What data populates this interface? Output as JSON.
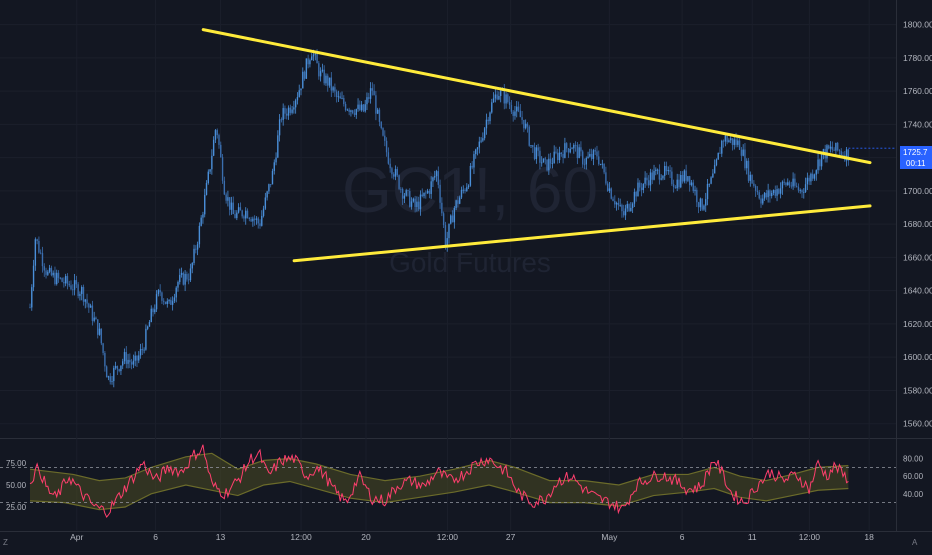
{
  "watermark": {
    "symbol": "GC1!, 60",
    "name": "Gold Futures"
  },
  "price": {
    "last": "1725.7",
    "countdown": "00:11",
    "accent": "#2962ff"
  },
  "colors": {
    "background": "#131722",
    "candle_up": "#4a8fd9",
    "candle_down": "#3b6fb0",
    "trendline": "#ffeb3b",
    "oscillator": "#ff3f6e",
    "band": "#6b6b2a",
    "band_fill": "#4a4a22",
    "axis_text": "#b2b5be"
  },
  "chart_data": [
    {
      "type": "candlestick",
      "title": "",
      "symbol": "GC1!, 60",
      "name": "Gold Futures",
      "x_ticks": [
        "Apr",
        "6",
        "13",
        "12:00",
        "20",
        "12:00",
        "27",
        "May",
        "6",
        "11",
        "12:00",
        "18"
      ],
      "y_ticks": [
        1800,
        1780,
        1760,
        1740,
        1720,
        1700,
        1680,
        1660,
        1640,
        1620,
        1600,
        1580,
        1560
      ],
      "ylim": [
        1552,
        1810
      ],
      "x_range": [
        0,
        100
      ],
      "price_path": [
        [
          0,
          1630
        ],
        [
          0.6,
          1672
        ],
        [
          2,
          1650
        ],
        [
          4,
          1645
        ],
        [
          6,
          1640
        ],
        [
          8,
          1615
        ],
        [
          9,
          1587
        ],
        [
          11,
          1600
        ],
        [
          12,
          1595
        ],
        [
          13,
          1605
        ],
        [
          14,
          1625
        ],
        [
          15,
          1640
        ],
        [
          16,
          1630
        ],
        [
          17,
          1645
        ],
        [
          18.5,
          1650
        ],
        [
          19.5,
          1675
        ],
        [
          20.5,
          1705
        ],
        [
          21.5,
          1740
        ],
        [
          22.5,
          1700
        ],
        [
          23.5,
          1685
        ],
        [
          25,
          1688
        ],
        [
          26.5,
          1680
        ],
        [
          28,
          1710
        ],
        [
          29,
          1745
        ],
        [
          30,
          1750
        ],
        [
          31,
          1760
        ],
        [
          32.5,
          1785
        ],
        [
          33.5,
          1770
        ],
        [
          34.5,
          1765
        ],
        [
          35.5,
          1755
        ],
        [
          37,
          1750
        ],
        [
          38.5,
          1748
        ],
        [
          39.5,
          1762
        ],
        [
          40.5,
          1735
        ],
        [
          41.5,
          1718
        ],
        [
          43,
          1700
        ],
        [
          44.5,
          1690
        ],
        [
          46,
          1700
        ],
        [
          47,
          1712
        ],
        [
          48,
          1668
        ],
        [
          49,
          1690
        ],
        [
          50.5,
          1705
        ],
        [
          52,
          1730
        ],
        [
          53,
          1748
        ],
        [
          54,
          1760
        ],
        [
          55,
          1755
        ],
        [
          56,
          1748
        ],
        [
          57,
          1742
        ],
        [
          58,
          1725
        ],
        [
          59.5,
          1715
        ],
        [
          61,
          1722
        ],
        [
          62.5,
          1728
        ],
        [
          64,
          1718
        ],
        [
          65.5,
          1722
        ],
        [
          67,
          1700
        ],
        [
          68.5,
          1685
        ],
        [
          70,
          1700
        ],
        [
          71.5,
          1708
        ],
        [
          73,
          1712
        ],
        [
          74.5,
          1705
        ],
        [
          76,
          1710
        ],
        [
          77.5,
          1690
        ],
        [
          79,
          1710
        ],
        [
          80,
          1732
        ],
        [
          81,
          1730
        ],
        [
          82,
          1728
        ],
        [
          83,
          1710
        ],
        [
          84.5,
          1695
        ],
        [
          86,
          1700
        ],
        [
          87.5,
          1705
        ],
        [
          89,
          1700
        ],
        [
          90.5,
          1712
        ],
        [
          91.5,
          1722
        ],
        [
          92.5,
          1725
        ],
        [
          93.5,
          1724
        ],
        [
          94.5,
          1722
        ]
      ],
      "trendlines": [
        {
          "name": "upper",
          "from": [
            20,
            1797
          ],
          "to": [
            97,
            1717
          ]
        },
        {
          "name": "lower",
          "from": [
            30.5,
            1658
          ],
          "to": [
            97,
            1691
          ]
        }
      ],
      "last_price": 1725.7
    },
    {
      "type": "line",
      "title": "",
      "y_ticks": [
        75.0,
        50.0,
        25.0
      ],
      "y_ticks_right": [
        80.0,
        60.0,
        40.0
      ],
      "levels": [
        70,
        30
      ],
      "osc_path": [
        [
          0,
          55
        ],
        [
          1,
          70
        ],
        [
          2,
          45
        ],
        [
          3,
          35
        ],
        [
          4.5,
          60
        ],
        [
          6,
          40
        ],
        [
          7.5,
          25
        ],
        [
          9,
          20
        ],
        [
          10.5,
          40
        ],
        [
          12,
          60
        ],
        [
          13,
          75
        ],
        [
          14.5,
          55
        ],
        [
          16,
          70
        ],
        [
          17.5,
          65
        ],
        [
          19,
          85
        ],
        [
          20,
          92
        ],
        [
          21,
          50
        ],
        [
          22.5,
          40
        ],
        [
          24,
          55
        ],
        [
          25.5,
          80
        ],
        [
          26.5,
          85
        ],
        [
          27.5,
          60
        ],
        [
          29,
          78
        ],
        [
          30.5,
          80
        ],
        [
          32,
          60
        ],
        [
          33,
          70
        ],
        [
          34,
          62
        ],
        [
          35,
          45
        ],
        [
          36.5,
          30
        ],
        [
          38,
          60
        ],
        [
          39.5,
          35
        ],
        [
          41,
          32
        ],
        [
          42.5,
          50
        ],
        [
          44,
          55
        ],
        [
          45.5,
          48
        ],
        [
          47,
          65
        ],
        [
          48.5,
          55
        ],
        [
          50,
          62
        ],
        [
          51.5,
          75
        ],
        [
          53,
          80
        ],
        [
          54,
          72
        ],
        [
          55,
          65
        ],
        [
          56.5,
          40
        ],
        [
          58,
          30
        ],
        [
          59.5,
          35
        ],
        [
          61,
          55
        ],
        [
          62.5,
          60
        ],
        [
          64,
          45
        ],
        [
          65.5,
          35
        ],
        [
          67,
          30
        ],
        [
          68.5,
          22
        ],
        [
          70,
          50
        ],
        [
          71.5,
          58
        ],
        [
          73,
          62
        ],
        [
          74.5,
          55
        ],
        [
          76,
          45
        ],
        [
          77.5,
          48
        ],
        [
          79,
          80
        ],
        [
          80,
          62
        ],
        [
          81,
          40
        ],
        [
          82.5,
          30
        ],
        [
          84,
          50
        ],
        [
          85.5,
          65
        ],
        [
          87,
          55
        ],
        [
          88.5,
          62
        ],
        [
          90,
          45
        ],
        [
          91,
          75
        ],
        [
          92,
          60
        ],
        [
          93,
          72
        ],
        [
          94,
          60
        ],
        [
          94.5,
          58
        ]
      ],
      "band_upper": [
        [
          0,
          68
        ],
        [
          5,
          62
        ],
        [
          8,
          55
        ],
        [
          11,
          58
        ],
        [
          14,
          70
        ],
        [
          18,
          82
        ],
        [
          21,
          86
        ],
        [
          24,
          68
        ],
        [
          27,
          78
        ],
        [
          30,
          80
        ],
        [
          33,
          74
        ],
        [
          37,
          62
        ],
        [
          41,
          55
        ],
        [
          45,
          60
        ],
        [
          49,
          68
        ],
        [
          53,
          78
        ],
        [
          56,
          70
        ],
        [
          60,
          55
        ],
        [
          64,
          55
        ],
        [
          68,
          50
        ],
        [
          72,
          62
        ],
        [
          76,
          62
        ],
        [
          79,
          70
        ],
        [
          82,
          60
        ],
        [
          85,
          55
        ],
        [
          88,
          62
        ],
        [
          91,
          70
        ],
        [
          94.5,
          72
        ]
      ],
      "band_lower": [
        [
          0,
          32
        ],
        [
          4,
          30
        ],
        [
          8,
          22
        ],
        [
          11,
          25
        ],
        [
          14,
          40
        ],
        [
          18,
          50
        ],
        [
          21,
          44
        ],
        [
          24,
          38
        ],
        [
          27,
          50
        ],
        [
          30,
          54
        ],
        [
          33,
          46
        ],
        [
          37,
          35
        ],
        [
          41,
          30
        ],
        [
          45,
          36
        ],
        [
          49,
          42
        ],
        [
          53,
          50
        ],
        [
          56,
          42
        ],
        [
          60,
          30
        ],
        [
          64,
          30
        ],
        [
          68,
          26
        ],
        [
          72,
          38
        ],
        [
          76,
          42
        ],
        [
          79,
          46
        ],
        [
          82,
          36
        ],
        [
          85,
          32
        ],
        [
          88,
          38
        ],
        [
          91,
          44
        ],
        [
          94.5,
          46
        ]
      ]
    }
  ]
}
